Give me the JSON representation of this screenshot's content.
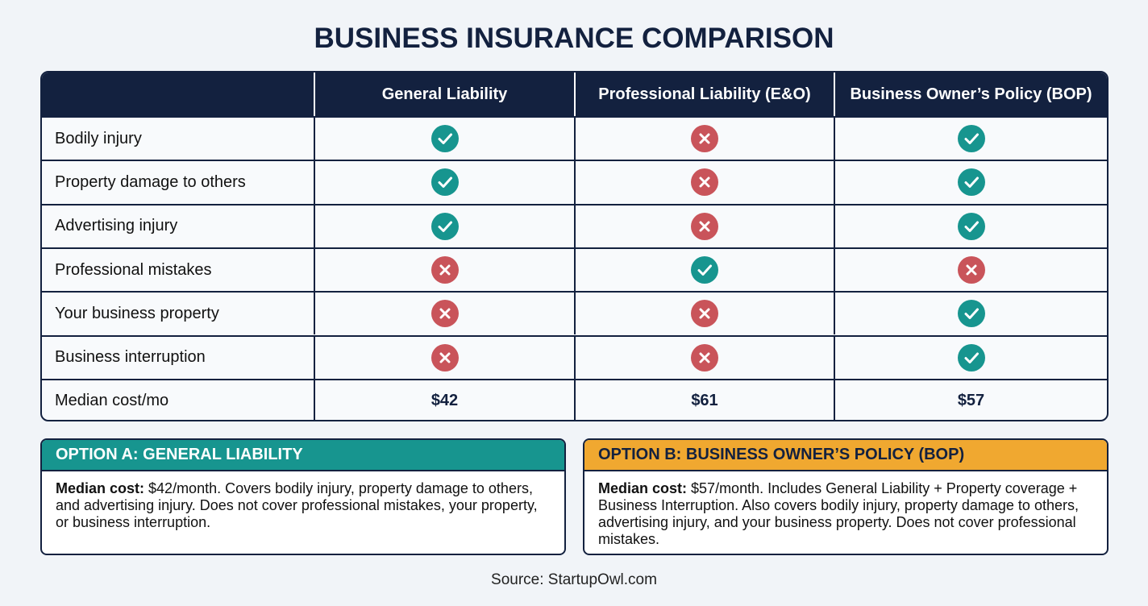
{
  "title": "BUSINESS INSURANCE COMPARISON",
  "table": {
    "columns": [
      "General Liability",
      "Professional Liability (E&O)",
      "Business Owner’s Policy (BOP)"
    ],
    "rows": [
      {
        "label": "Bodily injury",
        "covered": [
          true,
          false,
          true
        ]
      },
      {
        "label": "Property damage to others",
        "covered": [
          true,
          false,
          true
        ]
      },
      {
        "label": "Advertising injury",
        "covered": [
          true,
          false,
          true
        ]
      },
      {
        "label": "Professional mistakes",
        "covered": [
          false,
          true,
          false
        ]
      },
      {
        "label": "Your business property",
        "covered": [
          false,
          false,
          true
        ]
      },
      {
        "label": "Business interruption",
        "covered": [
          false,
          false,
          true
        ]
      }
    ],
    "cost_row": {
      "label": "Median cost/mo",
      "values": [
        "$42",
        "$61",
        "$57"
      ]
    }
  },
  "options": [
    {
      "title": "OPTION A: GENERAL LIABILITY",
      "lead": "Median cost:",
      "text": "$42/month. Covers bodily injury, property damage to others, and advertising injury. Does not cover professional mistakes, your property, or business interruption."
    },
    {
      "title": "OPTION B: BUSINESS OWNER’S POLICY (BOP)",
      "lead": "Median cost:",
      "text": "$57/month. Includes General Liability + Property coverage + Business Interruption. Also covers bodily injury, property damage to others, advertising injury, and your business property. Does not cover professional mistakes."
    }
  ],
  "source": "Source: StartupOwl.com"
}
